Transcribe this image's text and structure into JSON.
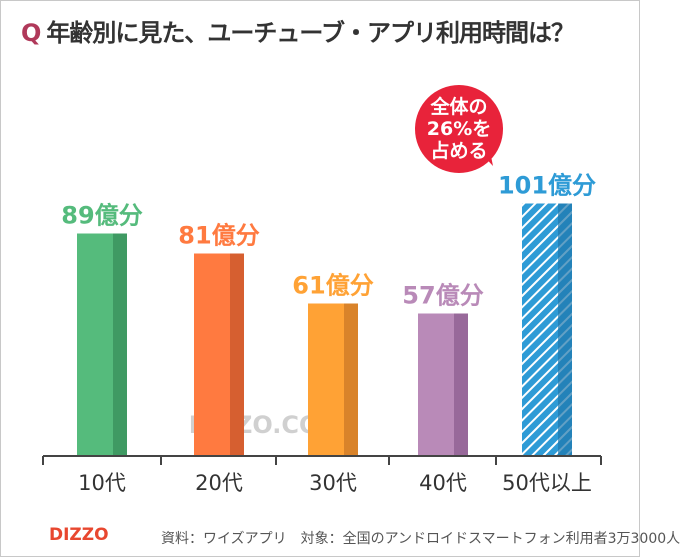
{
  "title": {
    "prefix": "Q",
    "text": "年齢別に見た、ユーチューブ・アプリ利用時間は？"
  },
  "chart_data": {
    "type": "bar",
    "title": "年齢別に見た、ユーチューブ・アプリ利用時間は？",
    "categories": [
      "10代",
      "20代",
      "30代",
      "40代",
      "50代以上"
    ],
    "values": [
      89,
      81,
      61,
      57,
      101
    ],
    "value_labels": [
      "89億分",
      "81億分",
      "61億分",
      "57億分",
      "101億分"
    ],
    "unit": "億分",
    "colors": [
      "#55bb7c",
      "#ff7a40",
      "#ffa235",
      "#b98ab8",
      "#2e9bd6"
    ],
    "shade_colors": [
      "#3f9a63",
      "#d65f30",
      "#d9832a",
      "#98699a",
      "#1f78ad"
    ],
    "ylim": [
      0,
      110
    ],
    "grid": false,
    "annotation": {
      "lines": [
        "全体の",
        "26%を",
        "占める"
      ],
      "target": "50代以上",
      "color": "#e8233a"
    }
  },
  "watermark": "DIZZO.COM",
  "footer": {
    "logo": "DIZZO",
    "source": "資料：ワイズアプリ　対象：全国のアンドロイドスマートフォン利用者3万3000人"
  }
}
